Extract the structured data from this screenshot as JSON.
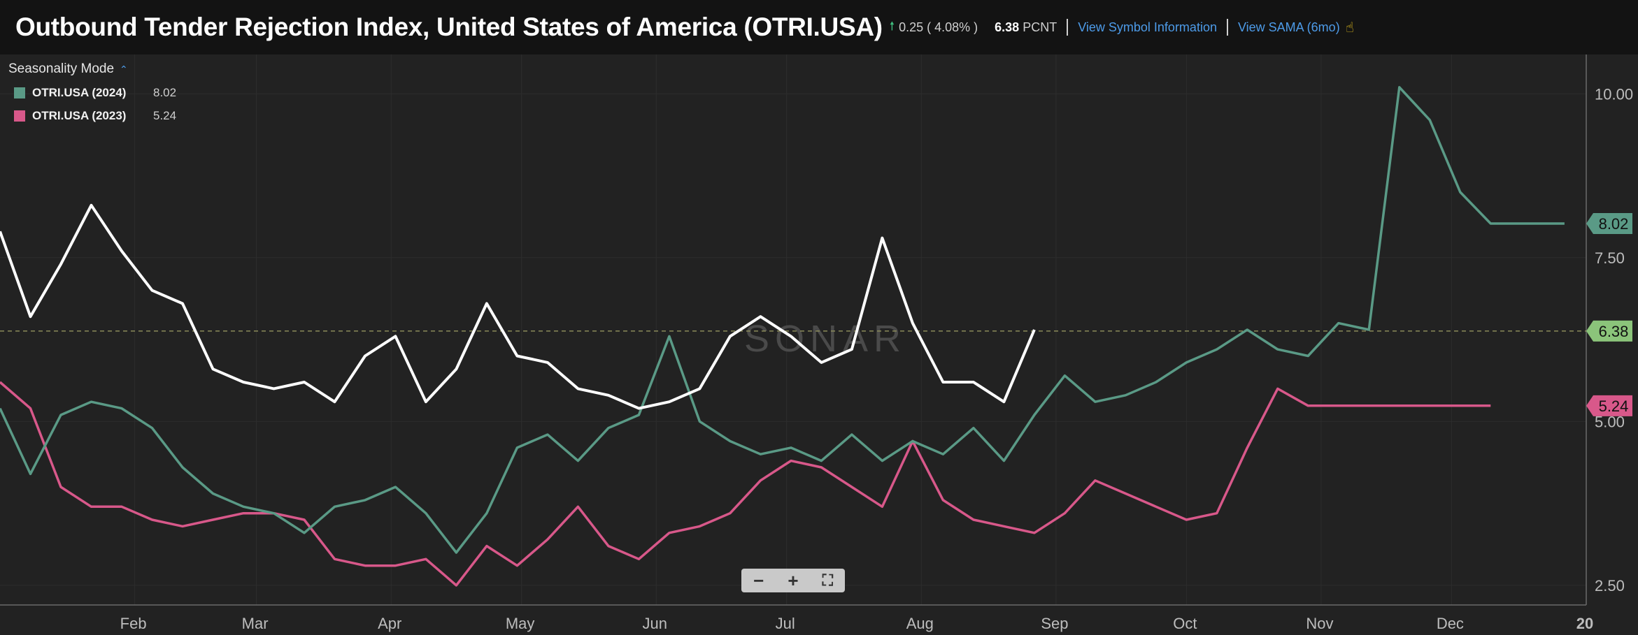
{
  "header": {
    "title": "Outbound Tender Rejection Index, United States of America (OTRI.USA)",
    "change_text": "0.25 ( 4.08% )",
    "last_value": "6.38",
    "last_unit": "PCNT",
    "link_symbol_info": "View Symbol Information",
    "link_sama": "View SAMA (6mo)",
    "up_icon": "arrow-up-icon",
    "sama_icon": "hand-chart-icon"
  },
  "legend": {
    "mode_label": "Seasonality Mode",
    "items": [
      {
        "name": "OTRI.USA (2024)",
        "value": "8.02",
        "color": "#5a9a86"
      },
      {
        "name": "OTRI.USA (2023)",
        "value": "5.24",
        "color": "#d8588a"
      }
    ]
  },
  "watermark": "SONAR",
  "zoom": {
    "minus": "−",
    "plus": "+",
    "fit": "⛶"
  },
  "chart_data": {
    "type": "line",
    "x_ticks": [
      "Feb",
      "Mar",
      "Apr",
      "May",
      "Jun",
      "Jul",
      "Aug",
      "Sep",
      "Oct",
      "Nov",
      "Dec",
      "20"
    ],
    "y_ticks": [
      "10.00",
      "7.50",
      "5.00",
      "2.50"
    ],
    "ylim": [
      2.2,
      10.6
    ],
    "reference_line": 6.38,
    "last_value_labels": [
      {
        "text": "8.02",
        "value": 8.02,
        "color": "#5a9a86"
      },
      {
        "text": "6.38",
        "value": 6.38,
        "color": "#8bc47a"
      },
      {
        "text": "5.24",
        "value": 5.24,
        "color": "#d8588a"
      }
    ],
    "series": [
      {
        "name": "",
        "color": "#ffffff",
        "x": [
          0,
          7,
          14,
          21,
          28,
          35,
          42,
          49,
          56,
          63,
          70,
          77,
          84,
          91,
          98,
          105,
          112,
          119,
          126,
          133,
          140,
          147,
          154,
          161,
          168,
          175,
          182,
          189,
          196,
          203,
          210,
          217,
          224,
          231,
          238
        ],
        "y": [
          7.9,
          6.6,
          7.4,
          8.3,
          7.6,
          7.0,
          6.8,
          5.8,
          5.6,
          5.5,
          5.6,
          5.3,
          6.0,
          6.3,
          5.3,
          5.8,
          6.8,
          6.0,
          5.9,
          5.5,
          5.4,
          5.2,
          5.3,
          5.5,
          6.3,
          6.6,
          6.3,
          5.9,
          6.1,
          7.8,
          6.5,
          5.6,
          5.6,
          5.3,
          6.4
        ]
      },
      {
        "name": "OTRI.USA (2024)",
        "color": "#5a9a86",
        "x": [
          0,
          7,
          14,
          21,
          28,
          35,
          42,
          49,
          56,
          63,
          70,
          77,
          84,
          91,
          98,
          105,
          112,
          119,
          126,
          133,
          140,
          147,
          154,
          161,
          168,
          175,
          182,
          189,
          196,
          203,
          210,
          217,
          224,
          231,
          238,
          245,
          252,
          259,
          266,
          273,
          280,
          287,
          294,
          301,
          308,
          315,
          322,
          329,
          336,
          343,
          350,
          357,
          360
        ],
        "y": [
          5.2,
          4.2,
          5.1,
          5.3,
          5.2,
          4.9,
          4.3,
          3.9,
          3.7,
          3.6,
          3.3,
          3.7,
          3.8,
          4.0,
          3.6,
          3.0,
          3.6,
          4.6,
          4.8,
          4.4,
          4.9,
          5.1,
          6.3,
          5.0,
          4.7,
          4.5,
          4.6,
          4.4,
          4.8,
          4.4,
          4.7,
          4.5,
          4.9,
          4.4,
          5.1,
          5.7,
          5.3,
          5.4,
          5.6,
          5.9,
          6.1,
          6.4,
          6.1,
          6.0,
          6.5,
          6.4,
          10.1,
          9.6,
          8.5,
          8.02,
          8.02,
          8.02,
          8.02
        ]
      },
      {
        "name": "OTRI.USA (2023)",
        "color": "#d8588a",
        "x": [
          0,
          7,
          14,
          21,
          28,
          35,
          42,
          49,
          56,
          63,
          70,
          77,
          84,
          91,
          98,
          105,
          112,
          119,
          126,
          133,
          140,
          147,
          154,
          161,
          168,
          175,
          182,
          189,
          196,
          203,
          210,
          217,
          224,
          231,
          238,
          245,
          252,
          259,
          266,
          273,
          280,
          287,
          294,
          301,
          308,
          315,
          322,
          329,
          336,
          343
        ],
        "y": [
          5.6,
          5.2,
          4.0,
          3.7,
          3.7,
          3.5,
          3.4,
          3.5,
          3.6,
          3.6,
          3.5,
          2.9,
          2.8,
          2.8,
          2.9,
          2.5,
          3.1,
          2.8,
          3.2,
          3.7,
          3.1,
          2.9,
          3.3,
          3.4,
          3.6,
          4.1,
          4.4,
          4.3,
          4.0,
          3.7,
          4.7,
          3.8,
          3.5,
          3.4,
          3.3,
          3.6,
          4.1,
          3.9,
          3.7,
          3.5,
          3.6,
          4.6,
          5.5,
          5.24,
          5.24,
          5.24,
          5.24,
          5.24,
          5.24,
          5.24
        ]
      }
    ]
  }
}
